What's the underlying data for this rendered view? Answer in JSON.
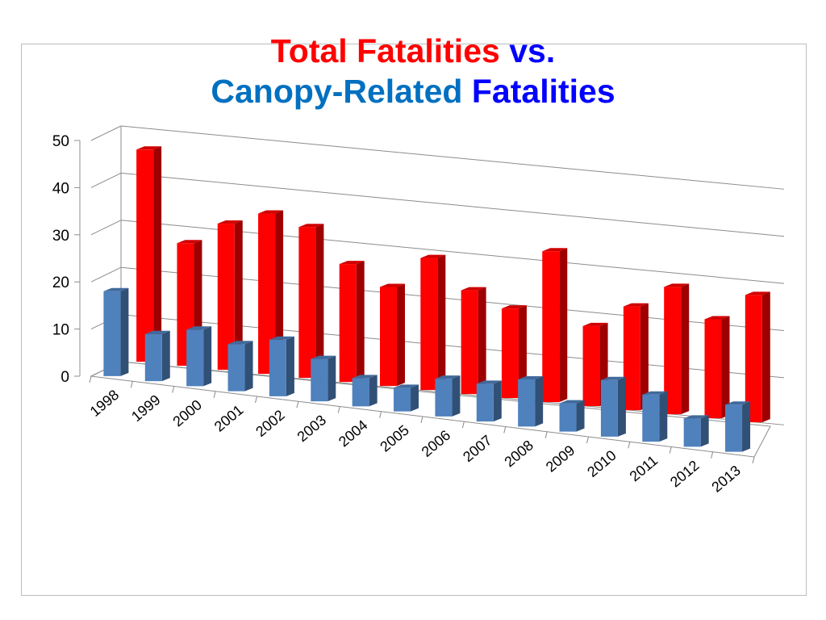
{
  "chart_data": {
    "type": "bar",
    "style": "3d-clustered-column",
    "title": {
      "line1": [
        {
          "text": "Total Fatalities",
          "color": "#ff0000"
        },
        {
          "text": "vs.",
          "color": "#0000ff"
        }
      ],
      "line2": [
        {
          "text": "Canopy-Related",
          "color": "#0070c0"
        },
        {
          "text": "Fatalities",
          "color": "#0000ff"
        }
      ]
    },
    "categories": [
      "1998",
      "1999",
      "2000",
      "2001",
      "2002",
      "2003",
      "2004",
      "2005",
      "2006",
      "2007",
      "2008",
      "2009",
      "2010",
      "2011",
      "2012",
      "2013"
    ],
    "series": [
      {
        "color": "#4f81bd",
        "values": [
          18,
          10,
          12,
          10,
          12,
          9,
          6,
          5,
          8,
          8,
          10,
          6,
          12,
          10,
          6,
          10
        ]
      },
      {
        "color": "#ff0000",
        "values": [
          45,
          26,
          31,
          34,
          32,
          25,
          21,
          28,
          22,
          19,
          32,
          17,
          22,
          27,
          21,
          27
        ]
      }
    ],
    "yticks": [
      0,
      10,
      20,
      30,
      40,
      50
    ],
    "ylim": [
      0,
      50
    ],
    "grid": true,
    "legend": "none"
  }
}
